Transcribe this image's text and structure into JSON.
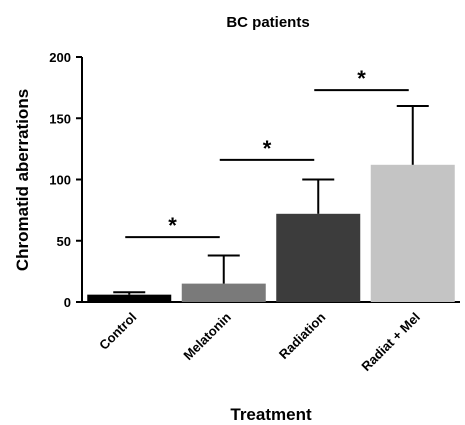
{
  "chart_data": {
    "type": "bar",
    "title": "BC patients",
    "xlabel": "Treatment",
    "ylabel": "Chromatid aberrations",
    "ylim": [
      0,
      200
    ],
    "yticks": [
      "0",
      "50",
      "100",
      "150",
      "200"
    ],
    "categories": [
      "Control",
      "Melatonin",
      "Radiation",
      "Radiat + Mel"
    ],
    "values": [
      6,
      15,
      72,
      112
    ],
    "errors": [
      2,
      23,
      28,
      48
    ],
    "colors": [
      "#000000",
      "#7a7a7a",
      "#3c3c3c",
      "#c4c4c4"
    ],
    "significance": [
      {
        "from": 0,
        "to": 1,
        "level": 53,
        "label": "*"
      },
      {
        "from": 1,
        "to": 2,
        "level": 116,
        "label": "*"
      },
      {
        "from": 2,
        "to": 3,
        "level": 173,
        "label": "*"
      }
    ],
    "grid": false,
    "legend": "none"
  }
}
